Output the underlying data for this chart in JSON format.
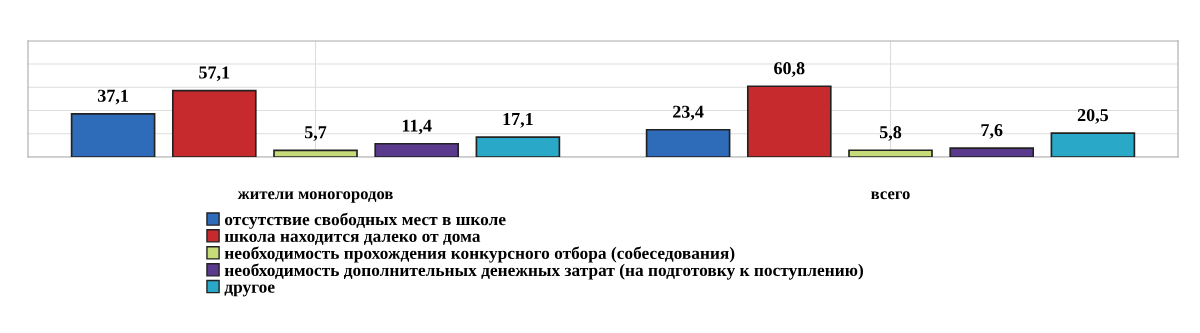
{
  "chart_data": {
    "type": "bar",
    "categories": [
      "жители моногородов",
      "всего"
    ],
    "series": [
      {
        "name": "отсутствие свободных мест в школе",
        "color": "#2e6bb8",
        "values": [
          37.1,
          23.4
        ],
        "value_labels": [
          "37,1",
          "23,4"
        ]
      },
      {
        "name": "школа находится далеко от дома",
        "color": "#c62a2c",
        "values": [
          57.1,
          60.8
        ],
        "value_labels": [
          "57,1",
          "60,8"
        ]
      },
      {
        "name": "необходимость прохождения конкурсного отбора (собеседования)",
        "color": "#c5dc78",
        "values": [
          5.7,
          5.8
        ],
        "value_labels": [
          "5,7",
          "5,8"
        ]
      },
      {
        "name": "необходимость дополнительных денежных затрат (на подготовку к поступлению)",
        "color": "#5a3a8c",
        "values": [
          11.4,
          7.6
        ],
        "value_labels": [
          "11,4",
          "7,6"
        ]
      },
      {
        "name": "другое",
        "color": "#2aa8c8",
        "values": [
          17.1,
          20.5
        ],
        "value_labels": [
          "17,1",
          "20,5"
        ]
      }
    ],
    "tick_labels": "x",
    "grid": true,
    "legend": "bottom left"
  }
}
